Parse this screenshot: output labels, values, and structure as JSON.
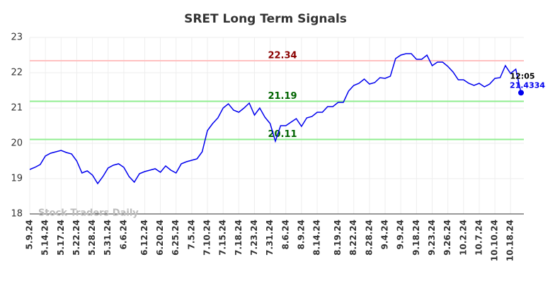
{
  "chart_data": {
    "type": "line",
    "title": "SRET Long Term Signals",
    "categories": [
      "5.9.24",
      null,
      null,
      "5.14.24",
      null,
      null,
      "5.17.24",
      null,
      null,
      "5.22.24",
      null,
      null,
      "5.28.24",
      null,
      null,
      "5.31.24",
      null,
      null,
      "6.6.24",
      null,
      null,
      null,
      "6.12.24",
      null,
      null,
      "6.20.24",
      null,
      null,
      "6.25.24",
      null,
      null,
      "7.5.24",
      null,
      null,
      "7.10.24",
      null,
      null,
      "7.15.24",
      null,
      null,
      "7.18.24",
      null,
      null,
      "7.23.24",
      null,
      null,
      "7.31.24",
      null,
      null,
      "8.6.24",
      null,
      null,
      "8.9.24",
      null,
      null,
      "8.14.24",
      null,
      null,
      null,
      "8.19.24",
      null,
      null,
      "8.22.24",
      null,
      null,
      "8.28.24",
      null,
      null,
      "9.4.24",
      null,
      null,
      "9.9.24",
      null,
      null,
      "9.18.24",
      null,
      null,
      "9.23.24",
      null,
      null,
      "9.26.24",
      null,
      null,
      "10.2.24",
      null,
      null,
      "10.7.24",
      null,
      null,
      "10.10.24",
      null,
      null,
      "10.18.24",
      null,
      null
    ],
    "series": [
      {
        "color": "#0000ee",
        "values": [
          19.26,
          19.32,
          19.4,
          19.64,
          19.72,
          19.76,
          19.8,
          19.74,
          19.7,
          19.5,
          19.16,
          19.22,
          19.1,
          18.86,
          19.06,
          19.3,
          19.38,
          19.42,
          19.32,
          19.06,
          18.9,
          19.14,
          19.2,
          19.24,
          19.28,
          19.18,
          19.36,
          19.24,
          19.16,
          19.42,
          19.48,
          19.52,
          19.56,
          19.76,
          20.36,
          20.56,
          20.72,
          21.0,
          21.12,
          20.94,
          20.88,
          21.0,
          21.14,
          20.8,
          21.0,
          20.74,
          20.56,
          20.06,
          20.5,
          20.5,
          20.6,
          20.7,
          20.48,
          20.72,
          20.76,
          20.88,
          20.88,
          21.04,
          21.04,
          21.16,
          21.16,
          21.48,
          21.64,
          21.7,
          21.82,
          21.68,
          21.72,
          21.86,
          21.84,
          21.9,
          22.4,
          22.5,
          22.54,
          22.54,
          22.38,
          22.38,
          22.5,
          22.2,
          22.3,
          22.3,
          22.18,
          22.02,
          21.8,
          21.8,
          21.7,
          21.64,
          21.7,
          21.6,
          21.68,
          21.84,
          21.86,
          22.2,
          21.98,
          22.1,
          21.4334
        ]
      }
    ],
    "ylim": [
      18,
      23
    ],
    "yticks": [
      18,
      19,
      20,
      21,
      22,
      23
    ],
    "grid": true,
    "levels": [
      {
        "value": 22.34,
        "color": "#ffc0c0",
        "label_color": "#8b0000"
      },
      {
        "value": 21.19,
        "color": "#90ee90",
        "label_color": "#006400"
      },
      {
        "value": 20.11,
        "color": "#90ee90",
        "label_color": "#006400"
      }
    ],
    "last_time": "12:05",
    "watermark": "Stock Traders Daily"
  }
}
